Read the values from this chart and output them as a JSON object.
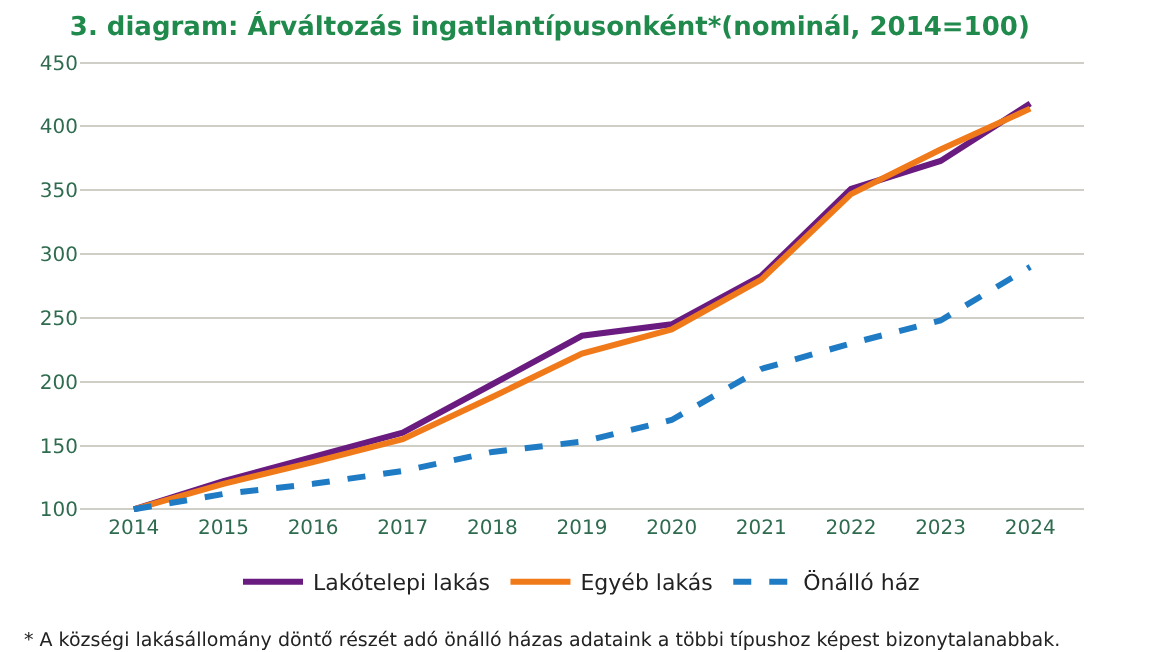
{
  "chart_data": {
    "type": "line",
    "title": "3. diagram: Árváltozás ingatlantípusonként*(nominál, 2014=100)",
    "categories": [
      "2014",
      "2015",
      "2016",
      "2017",
      "2018",
      "2019",
      "2020",
      "2021",
      "2022",
      "2023",
      "2024"
    ],
    "series": [
      {
        "name": "Lakótelepi lakás",
        "color": "#6a1b7f",
        "line_style": "solid",
        "values": [
          100,
          122,
          141,
          160,
          198,
          236,
          245,
          283,
          351,
          373,
          418
        ]
      },
      {
        "name": "Egyéb lakás",
        "color": "#f07a1a",
        "line_style": "solid",
        "values": [
          100,
          120,
          137,
          155,
          188,
          222,
          241,
          280,
          347,
          382,
          414
        ]
      },
      {
        "name": "Önálló ház",
        "color": "#1f7cc4",
        "line_style": "dashed",
        "values": [
          100,
          112,
          120,
          130,
          145,
          153,
          170,
          210,
          230,
          248,
          290
        ]
      }
    ],
    "ylim": [
      100,
      450
    ],
    "yticks": [
      100,
      150,
      200,
      250,
      300,
      350,
      400,
      450
    ],
    "grid": "y",
    "legend": "bottom",
    "marker": "none",
    "annotations": [
      "* A községi lakásállomány döntő részét adó önálló házas adataink a többi típushoz képest bizonytalanabbak."
    ]
  }
}
